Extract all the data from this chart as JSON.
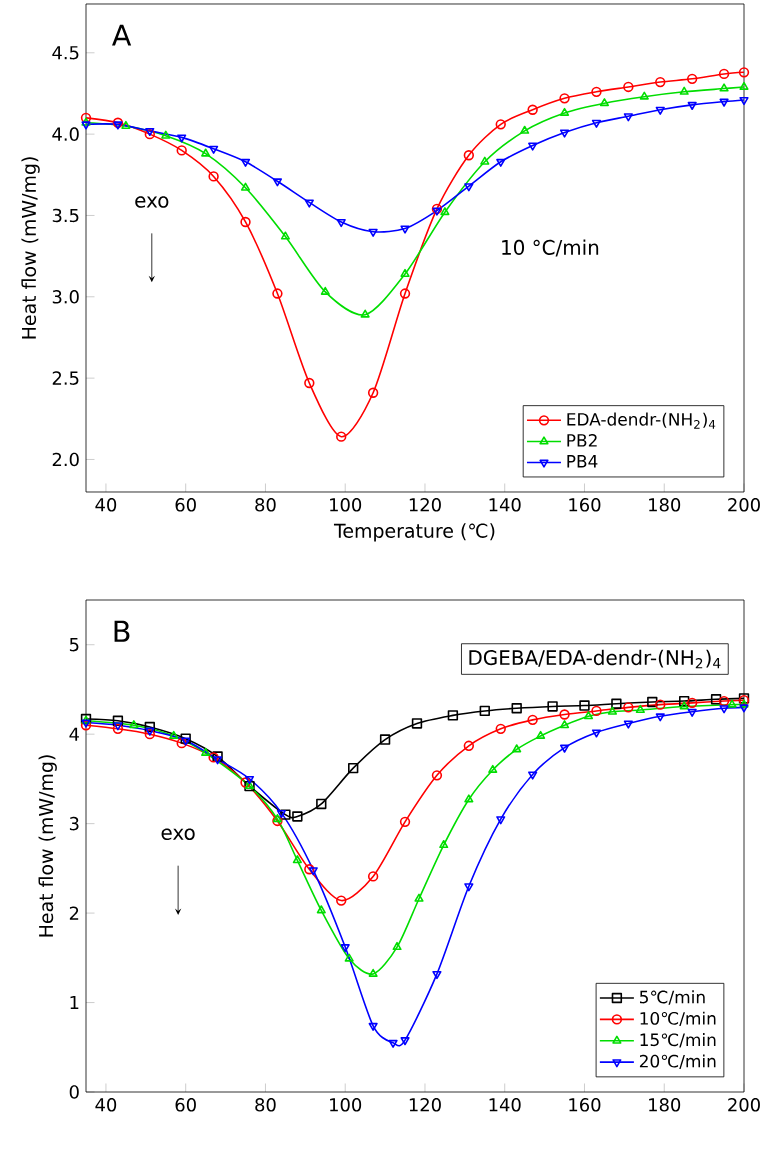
{
  "chart_data": [
    {
      "type": "line",
      "xlabel": "Temperature (℃)",
      "ylabel": "Heat flow (mW/mg)",
      "xlim": [
        35,
        200
      ],
      "ylim": [
        1.8,
        4.8
      ],
      "xticks": [
        40,
        60,
        80,
        100,
        120,
        140,
        160,
        180,
        200
      ],
      "yticks": [
        {
          "value": 2,
          "label": "2.0"
        },
        2.5,
        {
          "value": 3,
          "label": "3.0"
        },
        3.5,
        {
          "value": 4,
          "label": "4.0"
        },
        4.5
      ],
      "legend": "bottom right",
      "annotations": [
        "A",
        "exo",
        "10 °C/min"
      ],
      "series": [
        {
          "name": "EDA-dendr-(NH$_{2}$)$_{4}$",
          "color": "#ff0000",
          "marker": "circle",
          "x": [
            35,
            43,
            51,
            59,
            67,
            75,
            83,
            91,
            99,
            107,
            115,
            123,
            131,
            139,
            147,
            155,
            163,
            171,
            179,
            187,
            195,
            200
          ],
          "values": [
            4.1,
            4.07,
            4.0,
            3.9,
            3.74,
            3.46,
            3.02,
            2.47,
            2.14,
            2.41,
            3.02,
            3.54,
            3.87,
            4.06,
            4.15,
            4.22,
            4.26,
            4.29,
            4.32,
            4.34,
            4.37,
            4.38
          ]
        },
        {
          "name": "PB2",
          "color": "#00dd00",
          "marker": "triangle",
          "x": [
            35,
            45,
            55,
            65,
            75,
            85,
            95,
            105,
            115,
            125,
            135,
            145,
            155,
            165,
            175,
            185,
            195,
            200
          ],
          "values": [
            4.07,
            4.05,
            3.99,
            3.88,
            3.67,
            3.37,
            3.03,
            2.89,
            3.14,
            3.52,
            3.83,
            4.02,
            4.13,
            4.19,
            4.23,
            4.26,
            4.28,
            4.29
          ]
        },
        {
          "name": "PB4",
          "color": "#0000ff",
          "marker": "triangle_down",
          "x": [
            35,
            43,
            51,
            59,
            67,
            75,
            83,
            91,
            99,
            107,
            115,
            123,
            131,
            139,
            147,
            155,
            163,
            171,
            179,
            187,
            195,
            200
          ],
          "values": [
            4.06,
            4.06,
            4.02,
            3.98,
            3.91,
            3.83,
            3.71,
            3.58,
            3.46,
            3.4,
            3.42,
            3.53,
            3.68,
            3.83,
            3.93,
            4.01,
            4.07,
            4.11,
            4.15,
            4.18,
            4.2,
            4.21
          ]
        }
      ]
    },
    {
      "type": "line",
      "ylabel": "Heat flow (mW/mg)",
      "xlim": [
        35,
        200
      ],
      "ylim": [
        0,
        5.5
      ],
      "xticks": [
        40,
        60,
        80,
        100,
        120,
        140,
        160,
        180,
        200
      ],
      "yticks": [
        0,
        1,
        2,
        3,
        4,
        5
      ],
      "legend": "bottom right",
      "annotations": [
        "B",
        "exo",
        "DGEBA/EDA-dendr-(NH$_{2}$)$_{4}$"
      ],
      "series": [
        {
          "name": "5℃/min",
          "color": "#000000",
          "marker": "square",
          "x": [
            35,
            43,
            51,
            60,
            68,
            76,
            85,
            88,
            94,
            102,
            110,
            118,
            127,
            135,
            143,
            152,
            160,
            168,
            177,
            185,
            193,
            200
          ],
          "values": [
            4.17,
            4.15,
            4.08,
            3.95,
            3.75,
            3.42,
            3.1,
            3.08,
            3.22,
            3.62,
            3.94,
            4.12,
            4.21,
            4.26,
            4.29,
            4.31,
            4.32,
            4.34,
            4.36,
            4.37,
            4.39,
            4.4
          ]
        },
        {
          "name": "10℃/min",
          "color": "#ff0000",
          "marker": "circle",
          "x": [
            35,
            43,
            51,
            59,
            67,
            75,
            83,
            91,
            99,
            107,
            115,
            123,
            131,
            139,
            147,
            155,
            163,
            171,
            179,
            187,
            195,
            200
          ],
          "values": [
            4.1,
            4.06,
            4.0,
            3.9,
            3.74,
            3.46,
            3.03,
            2.49,
            2.14,
            2.41,
            3.02,
            3.54,
            3.87,
            4.06,
            4.16,
            4.22,
            4.26,
            4.3,
            4.33,
            4.35,
            4.37,
            4.38
          ]
        },
        {
          "name": "15℃/min",
          "color": "#00dd00",
          "marker": "triangle",
          "x": [
            35,
            47,
            57,
            65,
            76,
            83,
            88,
            94,
            101,
            107,
            113,
            118.5,
            124.7,
            131,
            137,
            143,
            149,
            155,
            161,
            167,
            174,
            185,
            197,
            200
          ],
          "values": [
            4.15,
            4.1,
            3.98,
            3.79,
            3.42,
            3.05,
            2.59,
            2.03,
            1.49,
            1.32,
            1.62,
            2.16,
            2.76,
            3.27,
            3.6,
            3.83,
            3.98,
            4.1,
            4.2,
            4.25,
            4.27,
            4.31,
            4.33,
            4.33
          ]
        },
        {
          "name": "20℃/min",
          "color": "#0000ff",
          "marker": "triangle_down",
          "x": [
            35,
            43,
            51,
            60,
            68,
            76,
            84,
            92,
            100,
            107,
            112,
            115,
            123,
            131,
            139,
            147,
            155,
            163,
            171,
            179,
            187,
            195,
            200
          ],
          "values": [
            4.13,
            4.1,
            4.04,
            3.93,
            3.72,
            3.5,
            3.12,
            2.48,
            1.62,
            0.74,
            0.55,
            0.58,
            1.32,
            2.3,
            3.05,
            3.55,
            3.85,
            4.02,
            4.12,
            4.2,
            4.25,
            4.29,
            4.3
          ]
        }
      ]
    }
  ]
}
